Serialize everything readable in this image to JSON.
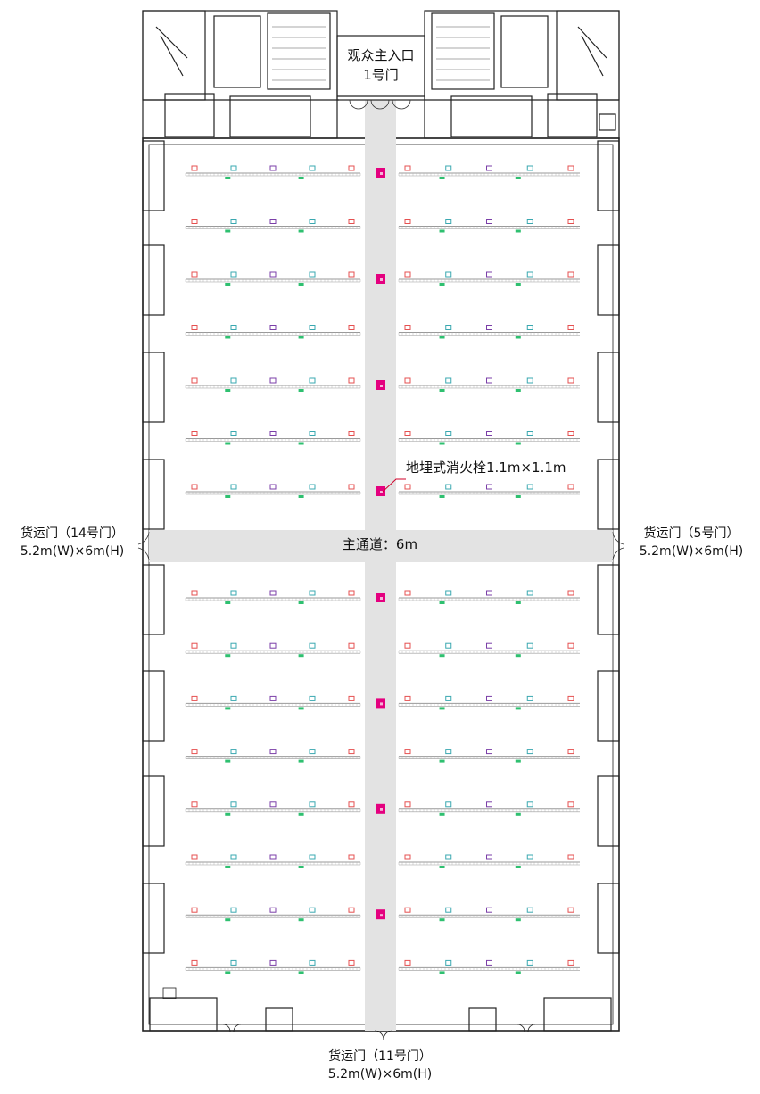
{
  "labels": {
    "main_entrance": {
      "line1": "观众主入口",
      "line2": "1号门"
    },
    "hydrant_callout": "地埋式消火栓1.1m×1.1m",
    "main_aisle": "主通道：6m",
    "door_west": {
      "line1": "货运门（14号门）",
      "line2": "5.2m(W)×6m(H)"
    },
    "door_east": {
      "line1": "货运门（5号门）",
      "line2": "5.2m(W)×6m(H)"
    },
    "door_south": {
      "line1": "货运门（11号门）",
      "line2": "5.2m(W)×6m(H)"
    }
  },
  "colors": {
    "wall": "#222222",
    "aisle": "#e3e3e3",
    "hydrant": "#e4007f",
    "outlet_red": "#e55050",
    "outlet_cyan": "#3aa8b0",
    "outlet_purple": "#7b3fa8",
    "outlet_green": "#2fc070",
    "rack": "#999999"
  },
  "layout_data": {
    "rows_top": 7,
    "rows_bottom": 8,
    "hydrant_rows_top": [
      0,
      2,
      4,
      6
    ],
    "hydrant_rows_bottom": [
      0,
      2,
      4,
      6
    ]
  }
}
